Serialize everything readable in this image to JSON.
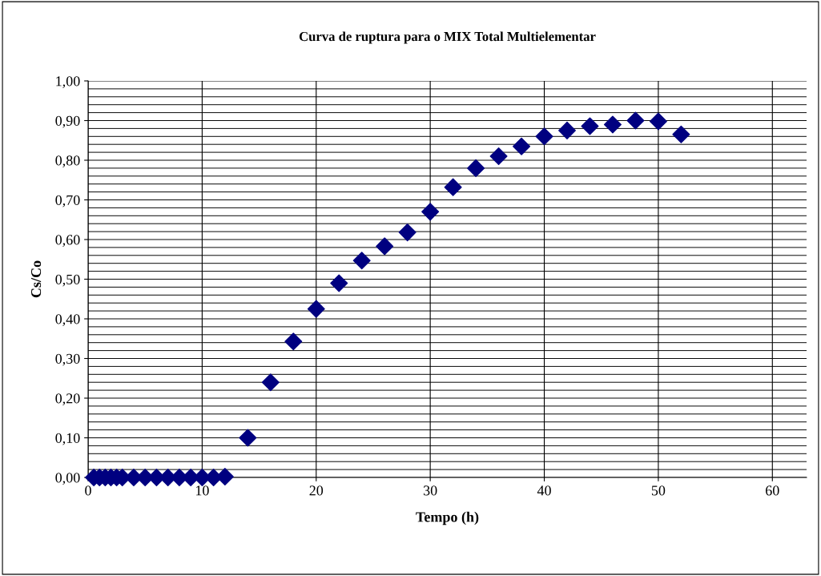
{
  "chart_data": {
    "type": "scatter",
    "title": "Curva de ruptura para o MIX Total Multielementar",
    "xlabel": "Tempo (h)",
    "ylabel": "Cs/Co",
    "x": [
      0.5,
      1,
      1.5,
      2,
      2.5,
      3,
      4,
      5,
      6,
      7,
      8,
      9,
      10,
      11,
      12,
      14,
      16,
      18,
      20,
      22,
      24,
      26,
      28,
      30,
      32,
      34,
      36,
      38,
      40,
      42,
      44,
      46,
      48,
      50,
      52
    ],
    "series": [
      {
        "color": "#000080",
        "values": [
          0,
          0,
          0,
          0,
          0,
          0,
          0,
          0,
          0,
          0,
          0,
          0,
          0,
          0,
          0.002,
          0.1,
          0.24,
          0.343,
          0.425,
          0.49,
          0.547,
          0.583,
          0.618,
          0.67,
          0.732,
          0.78,
          0.81,
          0.835,
          0.86,
          0.875,
          0.886,
          0.89,
          0.9,
          0.898,
          0.865
        ]
      }
    ],
    "xlim": [
      0,
      63
    ],
    "xticks": [
      0,
      10,
      20,
      30,
      40,
      50,
      60
    ],
    "ylim": [
      0,
      1
    ],
    "yticks": [
      {
        "value": 0,
        "label": "0,00"
      },
      {
        "value": 0.1,
        "label": "0,10"
      },
      {
        "value": 0.2,
        "label": "0,20"
      },
      {
        "value": 0.3,
        "label": "0,30"
      },
      {
        "value": 0.4,
        "label": "0,40"
      },
      {
        "value": 0.5,
        "label": "0,50"
      },
      {
        "value": 0.6,
        "label": "0,60"
      },
      {
        "value": 0.7,
        "label": "0,70"
      },
      {
        "value": 0.8,
        "label": "0,80"
      },
      {
        "value": 0.9,
        "label": "0,90"
      },
      {
        "value": 1.0,
        "label": "1,00"
      }
    ],
    "grid": true,
    "marker": "diamond",
    "legend": false
  }
}
